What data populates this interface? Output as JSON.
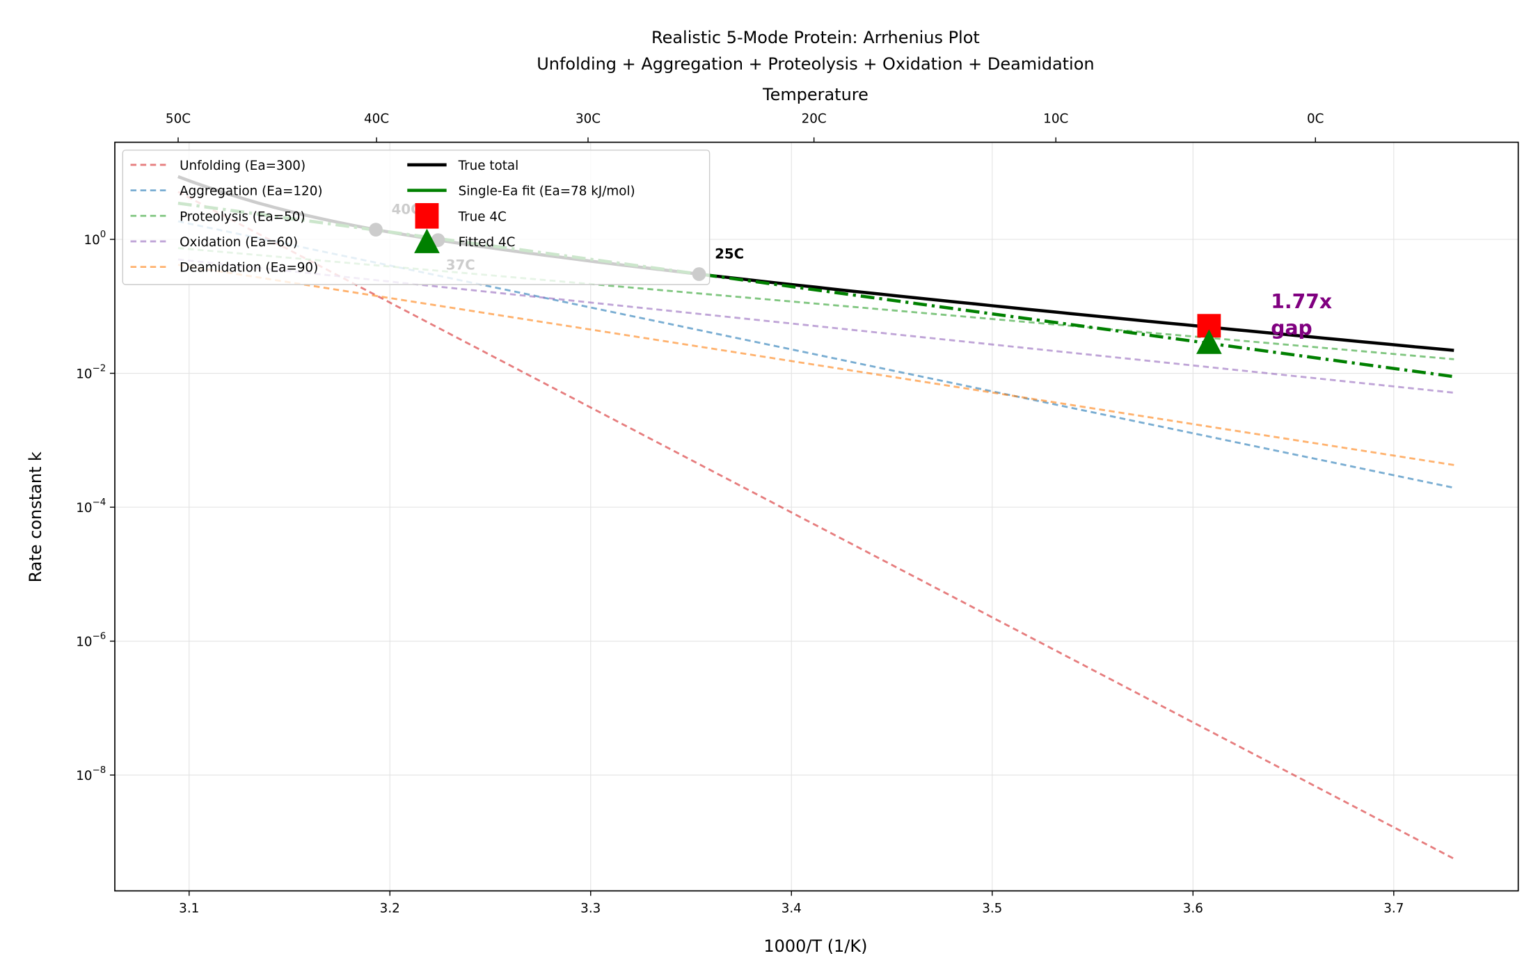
{
  "chart_data": {
    "type": "line",
    "title": "Realistic 5-Mode Protein: Arrhenius Plot",
    "subtitle": "Unfolding + Aggregation + Proteolysis + Oxidation + Deamidation",
    "xlabel": "1000/T (1/K)",
    "ylabel": "Rate constant k",
    "top_xlabel": "Temperature",
    "xlim": [
      3.063,
      3.762
    ],
    "ylim_log10": [
      -9.73,
      1.45
    ],
    "yscale": "log",
    "grid": true,
    "legend_position": "top-left",
    "x_ticks": [
      "3.1",
      "3.2",
      "3.3",
      "3.4",
      "3.5",
      "3.6",
      "3.7"
    ],
    "y_ticks": [
      {
        "base": "10",
        "exp": "0",
        "value": 0
      },
      {
        "base": "10",
        "exp": "−2",
        "value": -2
      },
      {
        "base": "10",
        "exp": "−4",
        "value": -4
      },
      {
        "base": "10",
        "exp": "−6",
        "value": -6
      },
      {
        "base": "10",
        "exp": "−8",
        "value": -8
      }
    ],
    "top_ticks": [
      {
        "label": "50C",
        "celsius": 50
      },
      {
        "label": "40C",
        "celsius": 40
      },
      {
        "label": "30C",
        "celsius": 30
      },
      {
        "label": "20C",
        "celsius": 20
      },
      {
        "label": "10C",
        "celsius": 10
      },
      {
        "label": "0C",
        "celsius": 0
      }
    ],
    "components": [
      {
        "name": "Unfolding (Ea=300)",
        "color": "#d62728",
        "x": [
          3.0945,
          3.73
        ],
        "log10_k": [
          0.71,
          -9.25
        ]
      },
      {
        "name": "Aggregation (Ea=120)",
        "color": "#1f77b4",
        "x": [
          3.0945,
          3.73
        ],
        "log10_k": [
          0.27,
          -3.71
        ]
      },
      {
        "name": "Proteolysis (Ea=50)",
        "color": "#2ca02c",
        "x": [
          3.0945,
          3.73
        ],
        "log10_k": [
          -0.13,
          -1.79
        ]
      },
      {
        "name": "Oxidation (Ea=60)",
        "color": "#9467bd",
        "x": [
          3.0945,
          3.73
        ],
        "log10_k": [
          -0.3,
          -2.29
        ]
      },
      {
        "name": "Deamidation (Ea=90)",
        "color": "#ff7f0e",
        "x": [
          3.0945,
          3.73
        ],
        "log10_k": [
          -0.38,
          -3.37
        ]
      }
    ],
    "total": {
      "name": "True total",
      "color": "#000000",
      "x_range": [
        3.0945,
        3.73
      ]
    },
    "fit": {
      "name": "Single-Ea fit (Ea=78 kJ/mol)",
      "color": "#008000",
      "x": [
        3.0945,
        3.73
      ],
      "log10_k": [
        0.54,
        -2.05
      ]
    },
    "points": [
      {
        "label": "40C",
        "x": 3.193
      },
      {
        "label": "37C",
        "x": 3.224
      },
      {
        "label": "25C",
        "x": 3.354
      }
    ],
    "true_4c": {
      "name": "True 4C",
      "x": 3.608,
      "log10_k": -1.29,
      "color": "#ff0000"
    },
    "fitted_4c": {
      "name": "Fitted 4C",
      "x": 3.608,
      "log10_k": -1.55,
      "color": "#008000"
    },
    "gap_annotation": {
      "line1": "1.77x",
      "line2": "gap",
      "color": "#800080"
    }
  }
}
